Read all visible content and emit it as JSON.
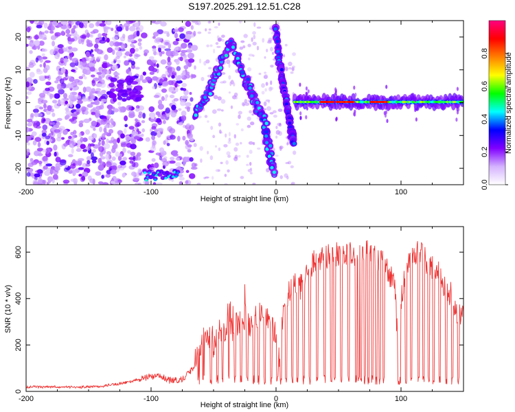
{
  "title": "S197.2025.291.12.51.C28",
  "chart_data": [
    {
      "type": "heatmap",
      "title": "S197.2025.291.12.51.C28",
      "xlabel": "Height of straight line (km)",
      "ylabel": "Frequency (Hz)",
      "xlim": [
        -200,
        150
      ],
      "ylim": [
        -25,
        25
      ],
      "x_ticks": [
        -200,
        -100,
        0,
        100
      ],
      "x_tick_labels": [
        "-200",
        "-100",
        "0",
        "100"
      ],
      "y_ticks": [
        20,
        10,
        0,
        -10,
        -20
      ],
      "y_tick_labels": [
        "20",
        "10",
        "0",
        "-10",
        "-20"
      ],
      "colorbar": {
        "label": "Normalized spectral amplitude",
        "range": [
          0,
          1
        ],
        "ticks": [
          0.0,
          0.2,
          0.4,
          0.6,
          0.8
        ],
        "tick_labels": [
          "0.0",
          "0.2",
          "0.4",
          "0.6",
          "0.8"
        ],
        "colors": [
          "#ffffff",
          "#d4b3ff",
          "#8000ff",
          "#0000ff",
          "#00ffff",
          "#00ff00",
          "#ffff00",
          "#ff8000",
          "#ff0000",
          "#ff0080"
        ]
      },
      "features": [
        {
          "name": "noise-background",
          "x_range": [
            -200,
            -65
          ],
          "y_range": [
            -25,
            25
          ],
          "level": 0.15
        },
        {
          "name": "cluster-left",
          "x_center": -120,
          "y_center": 4,
          "level": 0.2
        },
        {
          "name": "lower-band",
          "x_range": [
            -105,
            -78
          ],
          "y_center": -22,
          "level": 0.35
        },
        {
          "name": "curved-track",
          "points": [
            [
              -63,
              -3
            ],
            [
              -52,
              5
            ],
            [
              -42,
              14
            ],
            [
              -35,
              18
            ],
            [
              -25,
              8
            ],
            [
              -18,
              1
            ],
            [
              -10,
              -5
            ],
            [
              -5,
              -15
            ],
            [
              -2,
              -22
            ]
          ],
          "level": 0.35
        },
        {
          "name": "steep-track",
          "points": [
            [
              0,
              23
            ],
            [
              3,
              12
            ],
            [
              6,
              5
            ],
            [
              9,
              -2
            ],
            [
              12,
              -8
            ],
            [
              14,
              -13
            ]
          ],
          "level": 0.3
        },
        {
          "name": "carrier-line",
          "x_range": [
            15,
            150
          ],
          "y_center": 0.2,
          "level": 0.85
        }
      ]
    },
    {
      "type": "line",
      "xlabel": "Height of straight line (km)",
      "ylabel": "SNR (10 * v/v)",
      "xlim": [
        -200,
        150
      ],
      "ylim": [
        0,
        710
      ],
      "x_ticks": [
        -200,
        -100,
        0,
        100
      ],
      "x_tick_labels": [
        "-200",
        "-100",
        "0",
        "100"
      ],
      "y_ticks": [
        0,
        200,
        400,
        600
      ],
      "y_tick_labels": [
        "0",
        "200",
        "400",
        "600"
      ],
      "series": [
        {
          "name": "SNR",
          "color": "#ee3333",
          "x": [
            -200,
            -180,
            -160,
            -140,
            -120,
            -105,
            -95,
            -85,
            -75,
            -68,
            -62,
            -56,
            -50,
            -45,
            -40,
            -35,
            -30,
            -25,
            -20,
            -15,
            -10,
            -5,
            0,
            3,
            6,
            10,
            15,
            20,
            25,
            30,
            40,
            50,
            60,
            64,
            66,
            70,
            75,
            80,
            85,
            90,
            95,
            98,
            100,
            105,
            110,
            115,
            120,
            125,
            130,
            135,
            140,
            145,
            150
          ],
          "values": [
            18,
            20,
            18,
            22,
            38,
            58,
            70,
            48,
            52,
            88,
            150,
            240,
            190,
            230,
            280,
            260,
            300,
            320,
            280,
            330,
            340,
            300,
            250,
            120,
            380,
            430,
            460,
            450,
            520,
            560,
            580,
            590,
            600,
            560,
            580,
            590,
            600,
            570,
            560,
            520,
            450,
            140,
            380,
            560,
            580,
            600,
            560,
            530,
            520,
            450,
            420,
            340,
            330
          ]
        }
      ]
    }
  ]
}
